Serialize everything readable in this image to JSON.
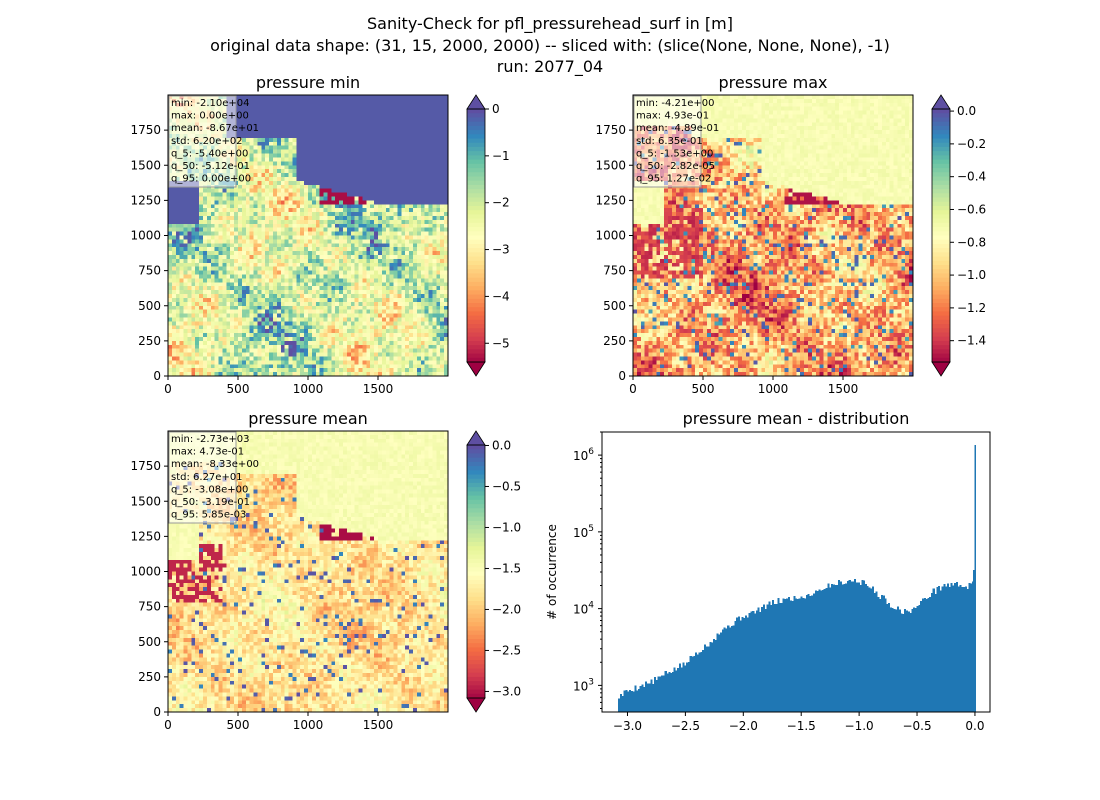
{
  "figure": {
    "title_lines": [
      "Sanity-Check for pfl_pressurehead_surf in [m]",
      "original data shape: (31, 15, 2000, 2000) -- sliced with: (slice(None, None, None), -1)",
      "run: 2077_04"
    ]
  },
  "colors": {
    "spectral": [
      "#9e0142",
      "#d53e4f",
      "#f46d43",
      "#fdae61",
      "#fee08b",
      "#ffffbf",
      "#e6f598",
      "#abdda4",
      "#66c2a5",
      "#3288bd",
      "#5e4fa2"
    ],
    "histogram_bar": "#1f77b4"
  },
  "chart_data": [
    {
      "type": "heatmap",
      "title": "pressure min",
      "xticks": [
        "0",
        "500",
        "1000",
        "1500"
      ],
      "yticks": [
        "0",
        "250",
        "500",
        "750",
        "1000",
        "1250",
        "1500",
        "1750"
      ],
      "xlim": [
        0,
        2000
      ],
      "ylim": [
        0,
        2000
      ],
      "colormap": "Spectral",
      "color_range": [
        -5.4,
        0.0
      ],
      "colorbar_ticks": [
        "0",
        "−1",
        "−2",
        "−3",
        "−4",
        "−5"
      ],
      "colorbar_extend": "both",
      "stats": [
        "min: -2.10e+04",
        "max: 0.00e+00",
        "mean: -8.67e+01",
        "std: 6.20e+02",
        "q_5: -5.40e+00",
        "q_50: -5.12e-01",
        "q_95: 0.00e+00"
      ]
    },
    {
      "type": "heatmap",
      "title": "pressure max",
      "xticks": [
        "0",
        "500",
        "1000",
        "1500"
      ],
      "yticks": [
        "0",
        "250",
        "500",
        "750",
        "1000",
        "1250",
        "1500",
        "1750"
      ],
      "xlim": [
        0,
        2000
      ],
      "ylim": [
        0,
        2000
      ],
      "colormap": "Spectral",
      "color_range": [
        -1.53,
        0.0127
      ],
      "colorbar_ticks": [
        "0.0",
        "−0.2",
        "−0.4",
        "−0.6",
        "−0.8",
        "−1.0",
        "−1.2",
        "−1.4"
      ],
      "colorbar_extend": "both",
      "stats": [
        "min: -4.21e+00",
        "max: 4.93e-01",
        "mean: -4.89e-01",
        "std: 6.35e-01",
        "q_5: -1.53e+00",
        "q_50: -2.82e-05",
        "q_95: 1.27e-02"
      ]
    },
    {
      "type": "heatmap",
      "title": "pressure mean",
      "xticks": [
        "0",
        "500",
        "1000",
        "1500"
      ],
      "yticks": [
        "0",
        "250",
        "500",
        "750",
        "1000",
        "1250",
        "1500",
        "1750"
      ],
      "xlim": [
        0,
        2000
      ],
      "ylim": [
        0,
        2000
      ],
      "colormap": "Spectral",
      "color_range": [
        -3.08,
        0.00585
      ],
      "colorbar_ticks": [
        "0.0",
        "−0.5",
        "−1.0",
        "−1.5",
        "−2.0",
        "−2.5",
        "−3.0"
      ],
      "colorbar_extend": "both",
      "stats": [
        "min: -2.73e+03",
        "max: 4.73e-01",
        "mean: -8.33e+00",
        "std: 6.27e+01",
        "q_5: -3.08e+00",
        "q_50: -3.19e-01",
        "q_95: 5.85e-03"
      ]
    },
    {
      "type": "bar",
      "title": "pressure mean - distribution",
      "ylabel": "# of occurrence",
      "yscale": "log",
      "xlim": [
        -3.22,
        0.13
      ],
      "ylim": [
        450,
        2000000
      ],
      "xticks": [
        "−3.0",
        "−2.5",
        "−2.0",
        "−1.5",
        "−1.0",
        "−0.5",
        "0.0"
      ],
      "yticks": [
        "10^3",
        "10^4",
        "10^5",
        "10^6"
      ],
      "bins": {
        "start": -3.08,
        "end": 0.00585,
        "count": 200,
        "anchors": [
          [
            -3.08,
            700
          ],
          [
            -3.0,
            850
          ],
          [
            -2.8,
            1100
          ],
          [
            -2.6,
            1600
          ],
          [
            -2.5,
            1900
          ],
          [
            -2.4,
            2700
          ],
          [
            -2.3,
            3500
          ],
          [
            -2.2,
            5000
          ],
          [
            -2.1,
            6300
          ],
          [
            -2.0,
            8000
          ],
          [
            -1.9,
            9000
          ],
          [
            -1.8,
            11000
          ],
          [
            -1.7,
            12500
          ],
          [
            -1.6,
            13500
          ],
          [
            -1.5,
            14000
          ],
          [
            -1.4,
            16000
          ],
          [
            -1.3,
            19000
          ],
          [
            -1.2,
            21500
          ],
          [
            -1.1,
            23000
          ],
          [
            -1.0,
            23000
          ],
          [
            -0.9,
            19000
          ],
          [
            -0.8,
            14000
          ],
          [
            -0.7,
            10500
          ],
          [
            -0.6,
            9000
          ],
          [
            -0.5,
            10500
          ],
          [
            -0.4,
            15000
          ],
          [
            -0.3,
            19000
          ],
          [
            -0.2,
            21000
          ],
          [
            -0.1,
            20000
          ],
          [
            -0.03,
            19500
          ],
          [
            0.0,
            23000
          ]
        ],
        "spikes": [
          [
            0.00585,
            1350000
          ],
          [
            -0.008,
            32000
          ]
        ]
      }
    }
  ]
}
